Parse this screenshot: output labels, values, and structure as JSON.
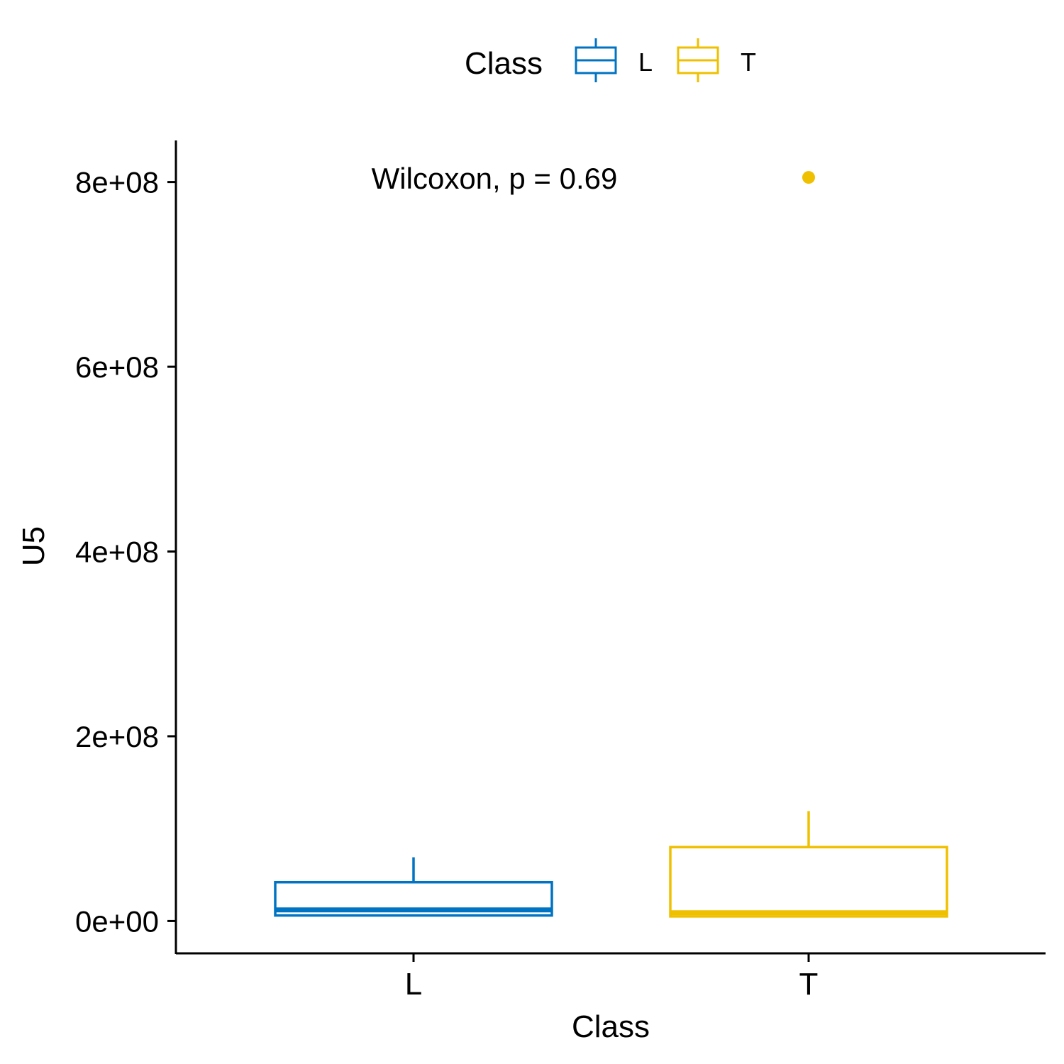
{
  "chart_data": {
    "type": "box",
    "xlabel": "Class",
    "ylabel": "U5",
    "categories": [
      "L",
      "T"
    ],
    "ylim": [
      -35000000,
      845000000
    ],
    "y_ticks": [
      {
        "value": 0,
        "label": "0e+00"
      },
      {
        "value": 200000000,
        "label": "2e+08"
      },
      {
        "value": 400000000,
        "label": "4e+08"
      },
      {
        "value": 600000000,
        "label": "6e+08"
      },
      {
        "value": 800000000,
        "label": "8e+08"
      }
    ],
    "legend": {
      "title": "Class",
      "position": "top",
      "entries": [
        {
          "label": "L",
          "color": "#0073C2"
        },
        {
          "label": "T",
          "color": "#EFC000"
        }
      ]
    },
    "annotation": "Wilcoxon, p = 0.69",
    "series": [
      {
        "category": "L",
        "color": "#0073C2",
        "min": 6000000,
        "q1": 6000000,
        "median": 12000000,
        "q3": 42000000,
        "max": 69000000,
        "outliers": []
      },
      {
        "category": "T",
        "color": "#EFC000",
        "min": 5000000,
        "q1": 5000000,
        "median": 9000000,
        "q3": 80000000,
        "max": 119000000,
        "outliers": [
          805000000
        ]
      }
    ]
  }
}
